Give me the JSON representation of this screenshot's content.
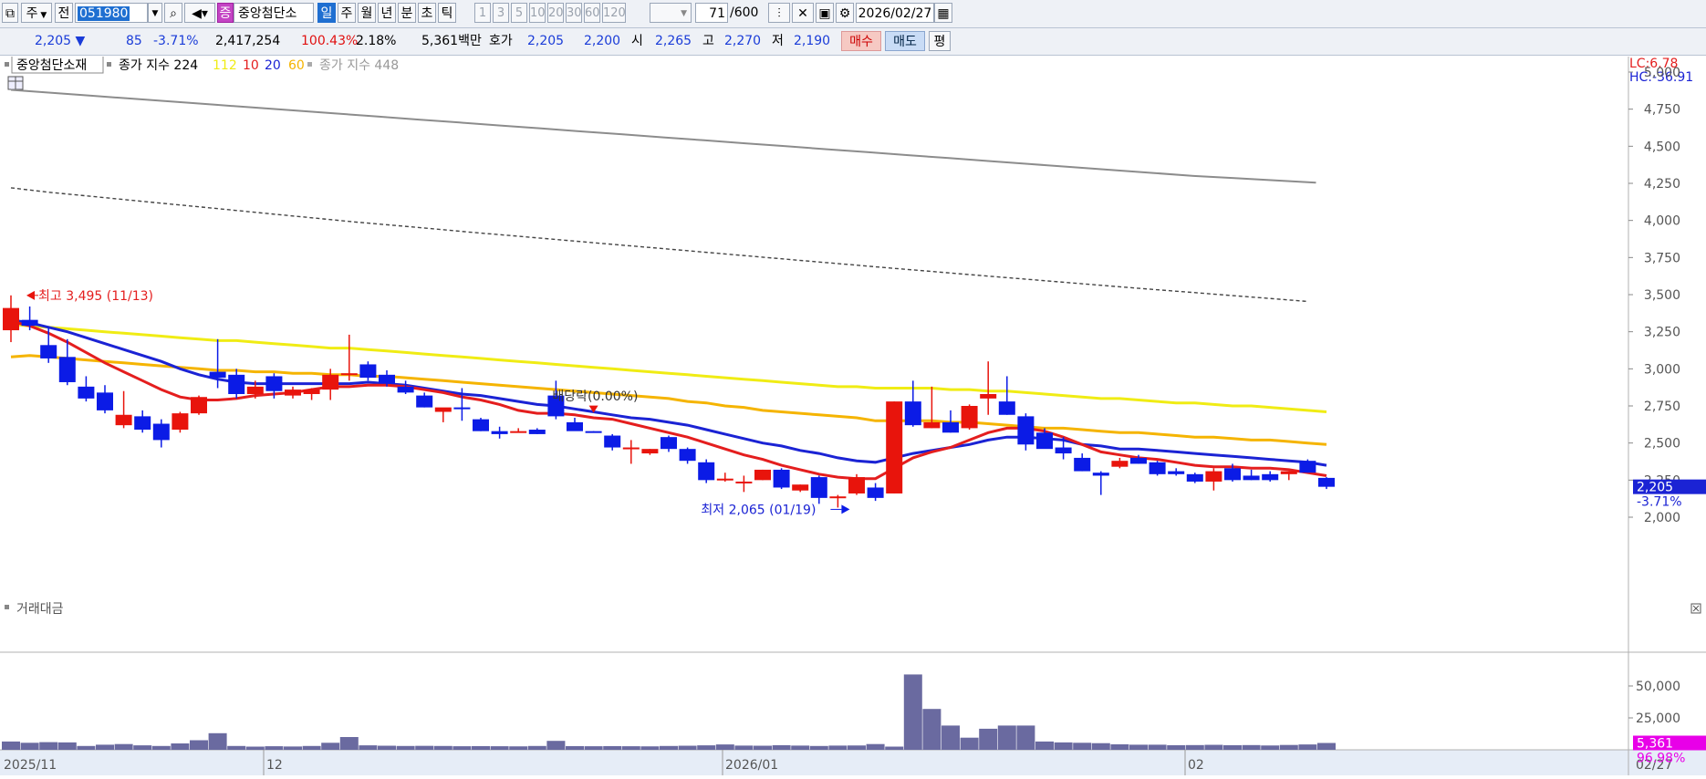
{
  "toolbar": {
    "period_dropdown": "주",
    "all_button": "전",
    "code": "051980",
    "stock_badge": "증",
    "stock_name": "중앙첨단소",
    "periods": [
      "일",
      "주",
      "월",
      "년",
      "분",
      "초",
      "틱"
    ],
    "active_period": "일",
    "intervals": [
      "1",
      "3",
      "5",
      "10",
      "20",
      "30",
      "60",
      "120"
    ],
    "count": "71",
    "count_max": "/600",
    "date": "2026/02/27"
  },
  "quote": {
    "price": "2,205 ▼",
    "change": "85",
    "change_pct": "-3.71%",
    "volume": "2,417,254",
    "volume_ratio": "100.43%",
    "turnover": "2.18%",
    "amount": "5,361백만",
    "ask_bid_label": "호가",
    "ask": "2,205",
    "bid": "2,200",
    "open_label": "시",
    "open": "2,265",
    "high_label": "고",
    "high": "2,270",
    "low_label": "저",
    "low": "2,190",
    "buy_label": "매수",
    "sell_label": "매도",
    "eval_label": "평"
  },
  "legend": {
    "name": "중앙첨단소재",
    "idx1": "종가 지수 224",
    "ma112": "112",
    "ma10": "10",
    "ma20": "20",
    "ma60": "60",
    "idx2": "종가 지수 448"
  },
  "right_info": {
    "lc": "LC:6.78",
    "hc": "HC:-36.91"
  },
  "current_label": {
    "price": "2,205",
    "pct": "-3.71%"
  },
  "vol_current": {
    "value": "5,361",
    "pct": "96.98%"
  },
  "colors": {
    "up": "#e8140c",
    "down": "#0b1be6",
    "ma10": "#e41e1e",
    "ma20": "#1b23d4",
    "ma60": "#f5b400",
    "ma112": "#f0ec14",
    "idx224": "#444444",
    "idx448": "#8c8c8c",
    "volume": "#6a6aa0"
  },
  "chart_data": {
    "type": "candlestick",
    "ylim": [
      1800,
      5100
    ],
    "yticks": [
      "5,000",
      "4,750",
      "4,500",
      "4,250",
      "4,000",
      "3,750",
      "3,500",
      "3,250",
      "3,000",
      "2,750",
      "2,500",
      "2,250",
      "2,000"
    ],
    "x_labels": [
      "2025/11",
      "12",
      "2026/01",
      "02",
      "02/27"
    ],
    "annotations": {
      "high": "최고 3,495 (11/13)",
      "low": "최저 2,065 (01/19)",
      "dividend": "배당락(0.00%)"
    },
    "candles": [
      {
        "o": 3260,
        "h": 3495,
        "l": 3180,
        "c": 3410
      },
      {
        "o": 3330,
        "h": 3420,
        "l": 3260,
        "c": 3290
      },
      {
        "o": 3160,
        "h": 3280,
        "l": 3040,
        "c": 3070
      },
      {
        "o": 3080,
        "h": 3200,
        "l": 2890,
        "c": 2910
      },
      {
        "o": 2880,
        "h": 2950,
        "l": 2780,
        "c": 2800
      },
      {
        "o": 2840,
        "h": 2890,
        "l": 2700,
        "c": 2720
      },
      {
        "o": 2620,
        "h": 2850,
        "l": 2600,
        "c": 2690
      },
      {
        "o": 2680,
        "h": 2720,
        "l": 2570,
        "c": 2590
      },
      {
        "o": 2630,
        "h": 2660,
        "l": 2470,
        "c": 2520
      },
      {
        "o": 2590,
        "h": 2710,
        "l": 2570,
        "c": 2700
      },
      {
        "o": 2700,
        "h": 2820,
        "l": 2690,
        "c": 2810
      },
      {
        "o": 2980,
        "h": 3200,
        "l": 2870,
        "c": 2940
      },
      {
        "o": 2960,
        "h": 3000,
        "l": 2800,
        "c": 2830
      },
      {
        "o": 2830,
        "h": 2920,
        "l": 2800,
        "c": 2880
      },
      {
        "o": 2950,
        "h": 2970,
        "l": 2800,
        "c": 2850
      },
      {
        "o": 2820,
        "h": 2880,
        "l": 2800,
        "c": 2860
      },
      {
        "o": 2830,
        "h": 2870,
        "l": 2790,
        "c": 2860
      },
      {
        "o": 2860,
        "h": 3000,
        "l": 2790,
        "c": 2960
      },
      {
        "o": 2960,
        "h": 3230,
        "l": 2920,
        "c": 2970
      },
      {
        "o": 3030,
        "h": 3050,
        "l": 2920,
        "c": 2940
      },
      {
        "o": 2960,
        "h": 2990,
        "l": 2880,
        "c": 2900
      },
      {
        "o": 2880,
        "h": 2920,
        "l": 2830,
        "c": 2840
      },
      {
        "o": 2820,
        "h": 2840,
        "l": 2740,
        "c": 2740
      },
      {
        "o": 2710,
        "h": 2730,
        "l": 2640,
        "c": 2740
      },
      {
        "o": 2740,
        "h": 2870,
        "l": 2650,
        "c": 2730
      },
      {
        "o": 2660,
        "h": 2670,
        "l": 2580,
        "c": 2580
      },
      {
        "o": 2580,
        "h": 2610,
        "l": 2530,
        "c": 2560
      },
      {
        "o": 2570,
        "h": 2600,
        "l": 2570,
        "c": 2580
      },
      {
        "o": 2590,
        "h": 2600,
        "l": 2560,
        "c": 2560
      },
      {
        "o": 2820,
        "h": 2920,
        "l": 2660,
        "c": 2680
      },
      {
        "o": 2640,
        "h": 2670,
        "l": 2600,
        "c": 2580
      },
      {
        "o": 2580,
        "h": 2580,
        "l": 2570,
        "c": 2570
      },
      {
        "o": 2550,
        "h": 2560,
        "l": 2450,
        "c": 2470
      },
      {
        "o": 2470,
        "h": 2520,
        "l": 2360,
        "c": 2470
      },
      {
        "o": 2430,
        "h": 2460,
        "l": 2420,
        "c": 2460
      },
      {
        "o": 2540,
        "h": 2550,
        "l": 2440,
        "c": 2460
      },
      {
        "o": 2460,
        "h": 2470,
        "l": 2360,
        "c": 2380
      },
      {
        "o": 2370,
        "h": 2390,
        "l": 2230,
        "c": 2250
      },
      {
        "o": 2260,
        "h": 2300,
        "l": 2240,
        "c": 2260
      },
      {
        "o": 2240,
        "h": 2280,
        "l": 2170,
        "c": 2240
      },
      {
        "o": 2250,
        "h": 2320,
        "l": 2250,
        "c": 2320
      },
      {
        "o": 2320,
        "h": 2330,
        "l": 2190,
        "c": 2200
      },
      {
        "o": 2180,
        "h": 2220,
        "l": 2170,
        "c": 2220
      },
      {
        "o": 2270,
        "h": 2280,
        "l": 2090,
        "c": 2130
      },
      {
        "o": 2130,
        "h": 2150,
        "l": 2065,
        "c": 2140
      },
      {
        "o": 2160,
        "h": 2290,
        "l": 2150,
        "c": 2270
      },
      {
        "o": 2200,
        "h": 2230,
        "l": 2110,
        "c": 2130
      },
      {
        "o": 2160,
        "h": 2780,
        "l": 2160,
        "c": 2780
      },
      {
        "o": 2780,
        "h": 2920,
        "l": 2610,
        "c": 2620
      },
      {
        "o": 2600,
        "h": 2880,
        "l": 2600,
        "c": 2640
      },
      {
        "o": 2640,
        "h": 2720,
        "l": 2570,
        "c": 2570
      },
      {
        "o": 2600,
        "h": 2760,
        "l": 2590,
        "c": 2750
      },
      {
        "o": 2800,
        "h": 3050,
        "l": 2690,
        "c": 2830
      },
      {
        "o": 2780,
        "h": 2950,
        "l": 2690,
        "c": 2690
      },
      {
        "o": 2680,
        "h": 2700,
        "l": 2450,
        "c": 2490
      },
      {
        "o": 2570,
        "h": 2600,
        "l": 2480,
        "c": 2460
      },
      {
        "o": 2470,
        "h": 2540,
        "l": 2390,
        "c": 2430
      },
      {
        "o": 2400,
        "h": 2430,
        "l": 2310,
        "c": 2310
      },
      {
        "o": 2300,
        "h": 2310,
        "l": 2150,
        "c": 2280
      },
      {
        "o": 2340,
        "h": 2400,
        "l": 2330,
        "c": 2380
      },
      {
        "o": 2400,
        "h": 2420,
        "l": 2360,
        "c": 2360
      },
      {
        "o": 2370,
        "h": 2380,
        "l": 2280,
        "c": 2290
      },
      {
        "o": 2310,
        "h": 2330,
        "l": 2280,
        "c": 2290
      },
      {
        "o": 2290,
        "h": 2300,
        "l": 2230,
        "c": 2240
      },
      {
        "o": 2240,
        "h": 2330,
        "l": 2180,
        "c": 2310
      },
      {
        "o": 2330,
        "h": 2360,
        "l": 2240,
        "c": 2250
      },
      {
        "o": 2280,
        "h": 2320,
        "l": 2250,
        "c": 2250
      },
      {
        "o": 2290,
        "h": 2310,
        "l": 2240,
        "c": 2250
      },
      {
        "o": 2290,
        "h": 2310,
        "l": 2250,
        "c": 2310
      },
      {
        "o": 2380,
        "h": 2390,
        "l": 2300,
        "c": 2300
      },
      {
        "o": 2265,
        "h": 2270,
        "l": 2190,
        "c": 2205
      }
    ],
    "series": [
      {
        "name": "10",
        "values": [
          3320,
          3290,
          3240,
          3180,
          3110,
          3040,
          2980,
          2920,
          2860,
          2810,
          2790,
          2790,
          2800,
          2820,
          2830,
          2840,
          2860,
          2880,
          2880,
          2890,
          2890,
          2880,
          2860,
          2840,
          2810,
          2790,
          2760,
          2720,
          2700,
          2700,
          2690,
          2670,
          2660,
          2630,
          2600,
          2570,
          2540,
          2500,
          2460,
          2420,
          2390,
          2350,
          2320,
          2290,
          2270,
          2260,
          2260,
          2330,
          2400,
          2440,
          2470,
          2520,
          2570,
          2600,
          2600,
          2580,
          2540,
          2490,
          2440,
          2420,
          2400,
          2390,
          2370,
          2350,
          2340,
          2340,
          2330,
          2330,
          2320,
          2300,
          2280
        ]
      },
      {
        "name": "20",
        "values": [
          3330,
          3310,
          3280,
          3250,
          3210,
          3170,
          3130,
          3090,
          3050,
          3000,
          2960,
          2930,
          2910,
          2900,
          2900,
          2900,
          2900,
          2900,
          2900,
          2910,
          2900,
          2890,
          2870,
          2850,
          2830,
          2820,
          2800,
          2780,
          2760,
          2750,
          2730,
          2710,
          2690,
          2670,
          2660,
          2640,
          2620,
          2590,
          2560,
          2530,
          2500,
          2480,
          2450,
          2430,
          2400,
          2380,
          2370,
          2400,
          2430,
          2450,
          2470,
          2490,
          2520,
          2540,
          2540,
          2530,
          2520,
          2490,
          2480,
          2460,
          2460,
          2450,
          2440,
          2430,
          2420,
          2410,
          2400,
          2390,
          2380,
          2370,
          2350
        ]
      },
      {
        "name": "60",
        "values": [
          3080,
          3090,
          3080,
          3070,
          3060,
          3050,
          3040,
          3030,
          3020,
          3010,
          3000,
          2990,
          2990,
          2980,
          2980,
          2970,
          2970,
          2960,
          2960,
          2950,
          2950,
          2940,
          2930,
          2920,
          2910,
          2900,
          2890,
          2880,
          2870,
          2860,
          2850,
          2840,
          2830,
          2820,
          2810,
          2800,
          2780,
          2770,
          2750,
          2740,
          2720,
          2710,
          2700,
          2690,
          2680,
          2670,
          2650,
          2650,
          2650,
          2650,
          2640,
          2640,
          2630,
          2620,
          2610,
          2600,
          2600,
          2590,
          2580,
          2570,
          2570,
          2560,
          2550,
          2540,
          2540,
          2530,
          2520,
          2520,
          2510,
          2500,
          2490
        ]
      },
      {
        "name": "112",
        "values": [
          3300,
          3290,
          3280,
          3270,
          3260,
          3250,
          3240,
          3230,
          3220,
          3210,
          3200,
          3190,
          3190,
          3180,
          3170,
          3160,
          3150,
          3140,
          3140,
          3130,
          3120,
          3110,
          3100,
          3090,
          3080,
          3070,
          3060,
          3050,
          3040,
          3030,
          3020,
          3010,
          3000,
          2990,
          2980,
          2970,
          2960,
          2950,
          2940,
          2930,
          2920,
          2910,
          2900,
          2890,
          2880,
          2880,
          2870,
          2870,
          2870,
          2870,
          2860,
          2860,
          2850,
          2850,
          2840,
          2830,
          2820,
          2810,
          2800,
          2800,
          2790,
          2780,
          2770,
          2770,
          2760,
          2750,
          2750,
          2740,
          2730,
          2720,
          2710
        ]
      },
      {
        "name": "종가 지수 224",
        "values": [
          4220,
          4190,
          4165,
          4140,
          4115,
          4090,
          4065,
          4040,
          4015,
          3990,
          3968,
          3945,
          3922,
          3900,
          3878,
          3856,
          3834,
          3812,
          3790,
          3768,
          3746,
          3724,
          3702,
          3680,
          3659,
          3638,
          3617,
          3596,
          3575,
          3554,
          3534,
          3514,
          3494,
          3474,
          3454
        ]
      },
      {
        "name": "종가 지수 448",
        "values": [
          4880,
          4860,
          4840,
          4820,
          4800,
          4780,
          4760,
          4740,
          4720,
          4700,
          4680,
          4660,
          4640,
          4620,
          4600,
          4580,
          4560,
          4540,
          4520,
          4500,
          4480,
          4460,
          4440,
          4420,
          4400,
          4380,
          4360,
          4340,
          4320,
          4300,
          4285,
          4270,
          4255
        ]
      }
    ],
    "volume": {
      "label": "거래대금",
      "yticks": [
        "50,000",
        "25,000"
      ],
      "ylim": [
        0,
        70000
      ],
      "values": [
        6500,
        5500,
        6000,
        5800,
        3000,
        4000,
        4500,
        3500,
        3000,
        5000,
        7500,
        13000,
        3000,
        2500,
        2800,
        2600,
        3000,
        5500,
        10000,
        3500,
        3200,
        3000,
        3100,
        3000,
        2800,
        2900,
        2800,
        2700,
        3000,
        7000,
        2900,
        2800,
        2900,
        2800,
        2700,
        3000,
        3200,
        3500,
        4200,
        3300,
        3200,
        3600,
        3300,
        3000,
        3300,
        3400,
        4500,
        2500,
        59000,
        32000,
        19000,
        9500,
        16500,
        19000,
        19000,
        6500,
        5800,
        5500,
        5200,
        4300,
        4000,
        4000,
        3600,
        3700,
        3900,
        3600,
        3700,
        3400,
        3800,
        4200,
        5361
      ]
    }
  }
}
